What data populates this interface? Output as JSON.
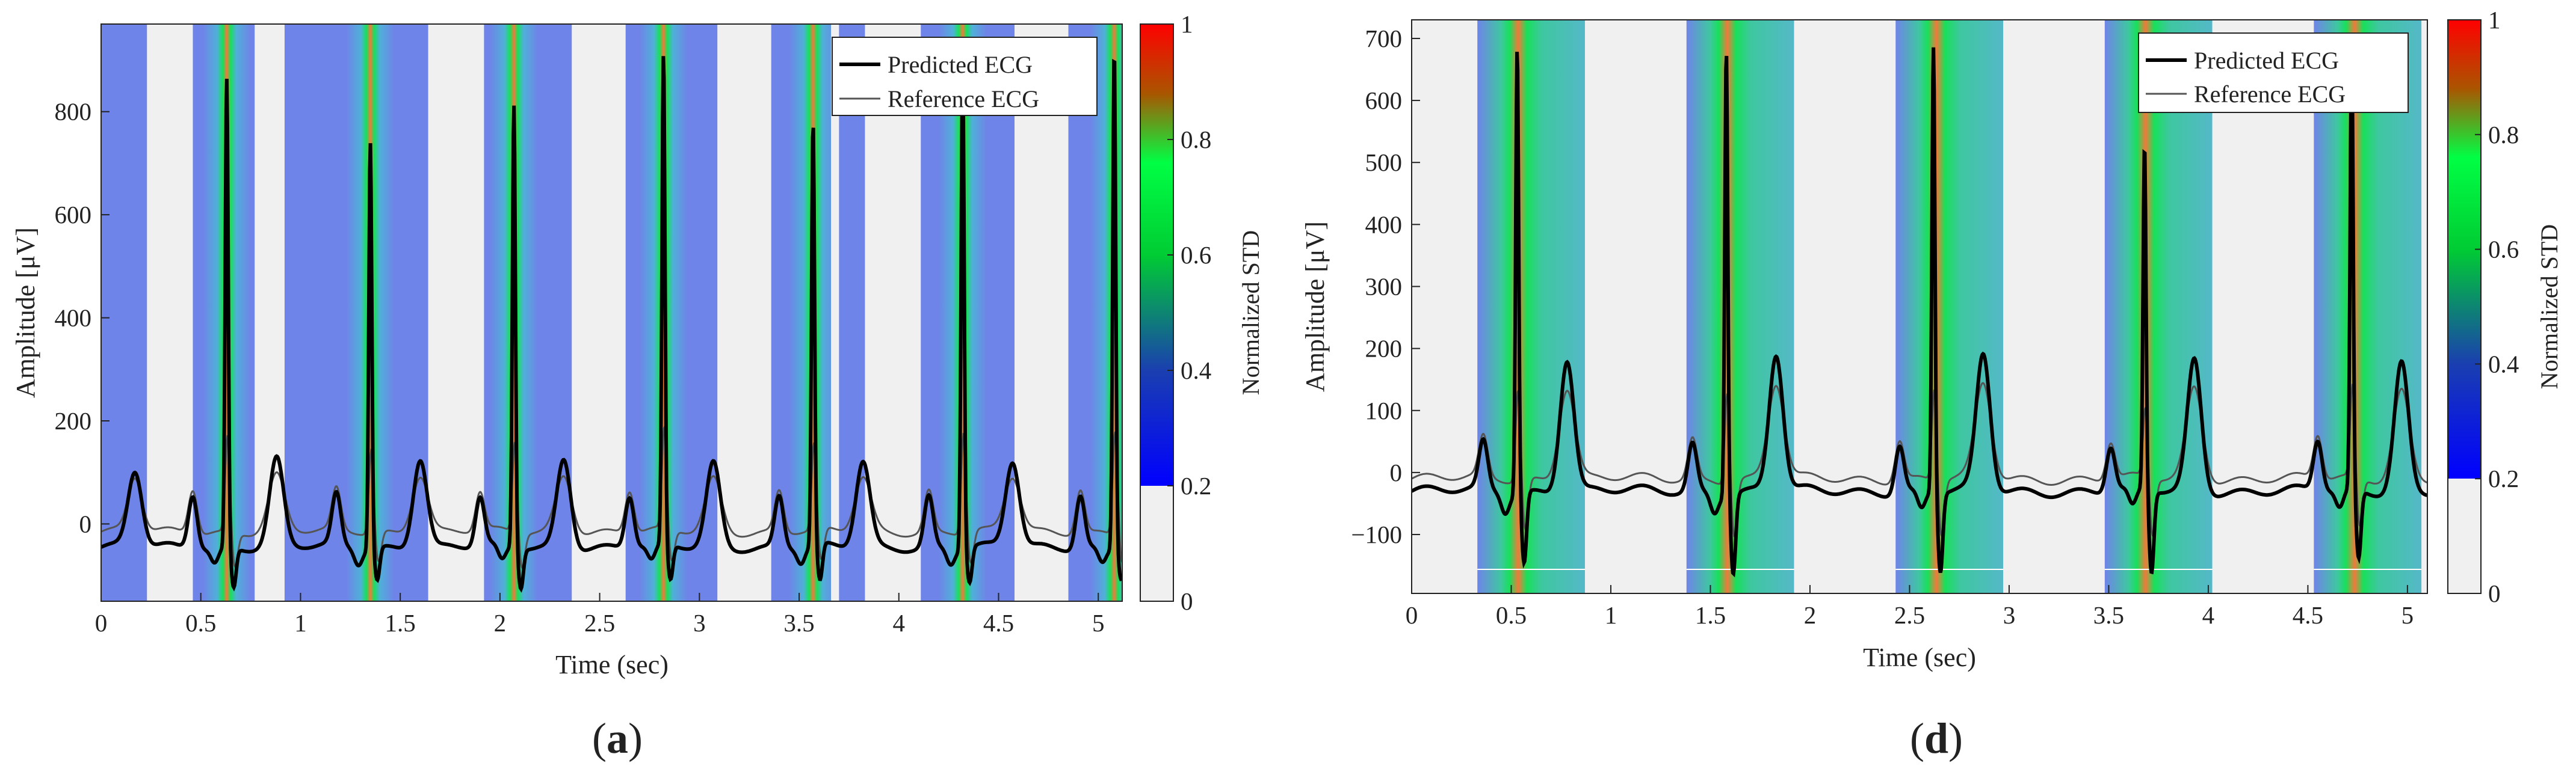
{
  "chart_data": [
    {
      "type": "line",
      "panel_label": "(a)",
      "panel_letter": "a",
      "xlabel": "Time (sec)",
      "ylabel": "Amplitude [μV]",
      "xlim": [
        0,
        5.12
      ],
      "ylim": [
        -150,
        970
      ],
      "xticks": [
        0,
        0.5,
        1,
        1.5,
        2,
        2.5,
        3,
        3.5,
        4,
        4.5,
        5
      ],
      "xtick_labels": [
        "0",
        "0.5",
        "1",
        "1.5",
        "2",
        "2.5",
        "3",
        "3.5",
        "4",
        "4.5",
        "5"
      ],
      "yticks": [
        0,
        200,
        400,
        600,
        800
      ],
      "ytick_labels": [
        "0",
        "200",
        "400",
        "600",
        "800"
      ],
      "grid": false,
      "legend_position": "top-right",
      "beats": {
        "r_peak_times": [
          0.63,
          1.35,
          2.07,
          2.82,
          3.57,
          4.32,
          5.08
        ],
        "r_peak_values": [
          865,
          745,
          815,
          905,
          775,
          905,
          925
        ],
        "t_wave_values": [
          125,
          130,
          128,
          118,
          120,
          120,
          115
        ],
        "p_wave_values": [
          70,
          65,
          60,
          65,
          65,
          65,
          70
        ],
        "s_wave_values": [
          -135,
          -120,
          -135,
          -125,
          -130,
          -125,
          -110
        ],
        "first_t_wave_time": 0.17,
        "first_t_wave_value": 100,
        "baseline_predicted": -45,
        "baseline_reference": -15
      },
      "series": [
        {
          "name": "Predicted ECG",
          "style": "thick black line"
        },
        {
          "name": "Reference ECG",
          "style": "thin gray line"
        }
      ],
      "std_overlay": {
        "description": "Normalized STD heatmap bands behind the signal",
        "gray_gaps": [
          [
            0.23,
            0.46
          ],
          [
            0.77,
            0.92
          ],
          [
            1.64,
            1.92
          ],
          [
            2.36,
            2.63
          ],
          [
            3.09,
            3.36
          ],
          [
            3.66,
            3.7
          ],
          [
            3.83,
            4.11
          ],
          [
            4.58,
            4.85
          ]
        ],
        "high_std_centers": [
          0.63,
          1.35,
          2.07,
          2.82,
          3.57,
          4.32,
          5.08
        ]
      },
      "colorbar": {
        "label": "Normalized STD",
        "range": [
          0,
          1
        ],
        "ticks": [
          0,
          0.2,
          0.4,
          0.6,
          0.8,
          1
        ],
        "tick_labels": [
          "0",
          "0.2",
          "0.4",
          "0.6",
          "0.8",
          "1"
        ],
        "threshold": 0.2,
        "below_threshold_color": "#f0f0f0",
        "colormap": [
          "#0000ff",
          "#1a3fb0",
          "#00cc33",
          "#00ff44",
          "#ff2200",
          "#ff0000"
        ]
      }
    },
    {
      "type": "line",
      "panel_label": "(d)",
      "panel_letter": "d",
      "xlabel": "Time (sec)",
      "ylabel": "Amplitude [μV]",
      "xlim": [
        0,
        5.1
      ],
      "ylim": [
        -195,
        730
      ],
      "xticks": [
        0,
        0.5,
        1,
        1.5,
        2,
        2.5,
        3,
        3.5,
        4,
        4.5,
        5
      ],
      "xtick_labels": [
        "0",
        "0.5",
        "1",
        "1.5",
        "2",
        "2.5",
        "3",
        "3.5",
        "4",
        "4.5",
        "5"
      ],
      "yticks": [
        -100,
        0,
        100,
        200,
        300,
        400,
        500,
        600,
        700
      ],
      "ytick_labels": [
        "−100",
        "0",
        "100",
        "200",
        "300",
        "400",
        "500",
        "600",
        "700"
      ],
      "grid": false,
      "legend_position": "top-right",
      "beats": {
        "r_peak_times": [
          0.53,
          1.58,
          2.62,
          3.68,
          4.72
        ],
        "r_peak_values": [
          690,
          690,
          690,
          525,
          690
        ],
        "t_wave_values": [
          185,
          190,
          188,
          182,
          178
        ],
        "p_wave_values": [
          55,
          55,
          55,
          50,
          60
        ],
        "s_wave_values": [
          -165,
          -180,
          -180,
          -185,
          -160
        ],
        "baseline_predicted": -30,
        "baseline_reference": -10
      },
      "series": [
        {
          "name": "Predicted ECG",
          "style": "thick black line"
        },
        {
          "name": "Reference ECG",
          "style": "thin gray line"
        }
      ],
      "std_overlay": {
        "description": "Normalized STD heatmap bands behind the signal",
        "bands": [
          [
            0.33,
            0.87
          ],
          [
            1.38,
            1.92
          ],
          [
            2.43,
            2.97
          ],
          [
            3.48,
            4.02
          ],
          [
            4.53,
            5.07
          ]
        ],
        "high_std_centers": [
          0.53,
          1.58,
          2.62,
          3.68,
          4.72
        ]
      },
      "colorbar": {
        "label": "Normalized STD",
        "range": [
          0,
          1
        ],
        "ticks": [
          0,
          0.2,
          0.4,
          0.6,
          0.8,
          1
        ],
        "tick_labels": [
          "0",
          "0.2",
          "0.4",
          "0.6",
          "0.8",
          "1"
        ],
        "threshold": 0.2,
        "below_threshold_color": "#f0f0f0",
        "colormap": [
          "#0000ff",
          "#1a3fb0",
          "#00cc33",
          "#00ff44",
          "#ff2200",
          "#ff0000"
        ]
      }
    }
  ]
}
